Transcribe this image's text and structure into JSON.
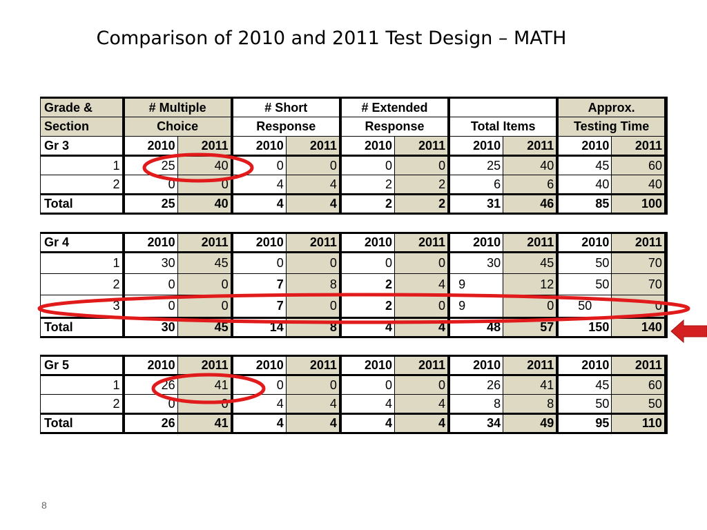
{
  "title": "Comparison of 2010 and 2011 Test Design – MATH",
  "slide_number": "8",
  "header": {
    "grade_section_line1": "Grade &",
    "grade_section_line2": "Section",
    "mc_line1": "# Multiple",
    "mc_line2": "Choice",
    "sr_line1": "# Short",
    "sr_line2": "Response",
    "er_line1": "# Extended",
    "er_line2": "Response",
    "total_items": "Total Items",
    "time_line1": "Approx.",
    "time_line2": "Testing Time"
  },
  "tables": [
    {
      "label": "Gr 3",
      "years": [
        "2010",
        "2011",
        "2010",
        "2011",
        "2010",
        "2011",
        "2010",
        "2011",
        "2010",
        "2011"
      ],
      "rows": [
        {
          "section": "1",
          "values": [
            "25",
            "40",
            "0",
            "0",
            "0",
            "0",
            "25",
            "40",
            "45",
            "60"
          ]
        },
        {
          "section": "2",
          "values": [
            "0",
            "0",
            "4",
            "4",
            "2",
            "2",
            "6",
            "6",
            "40",
            "40"
          ]
        }
      ],
      "total": {
        "label": "Total",
        "values": [
          "25",
          "40",
          "4",
          "4",
          "2",
          "2",
          "31",
          "46",
          "85",
          "100"
        ]
      }
    },
    {
      "label": "Gr 4",
      "years": [
        "2010",
        "2011",
        "2010",
        "2011",
        "2010",
        "2011",
        "2010",
        "2011",
        "2010",
        "2011"
      ],
      "rows": [
        {
          "section": "1",
          "values": [
            "30",
            "45",
            "0",
            "0",
            "0",
            "0",
            "30",
            "45",
            "50",
            "70"
          ]
        },
        {
          "section": "2",
          "values": [
            "0",
            "0",
            "7",
            "8",
            "2",
            "4",
            "9",
            "12",
            "50",
            "70"
          ]
        },
        {
          "section": "3",
          "values": [
            "0",
            "0",
            "7",
            "0",
            "2",
            "0",
            "9",
            "0",
            "50",
            "0"
          ]
        }
      ],
      "total": {
        "label": "Total",
        "values": [
          "30",
          "45",
          "14",
          "8",
          "4",
          "4",
          "48",
          "57",
          "150",
          "140"
        ]
      }
    },
    {
      "label": "Gr 5",
      "years": [
        "2010",
        "2011",
        "2010",
        "2011",
        "2010",
        "2011",
        "2010",
        "2011",
        "2010",
        "2011"
      ],
      "rows": [
        {
          "section": "1",
          "values": [
            "26",
            "41",
            "0",
            "0",
            "0",
            "0",
            "26",
            "41",
            "45",
            "60"
          ]
        },
        {
          "section": "2",
          "values": [
            "0",
            "0",
            "4",
            "4",
            "4",
            "4",
            "8",
            "8",
            "50",
            "50"
          ]
        }
      ],
      "total": {
        "label": "Total",
        "values": [
          "26",
          "41",
          "4",
          "4",
          "4",
          "4",
          "34",
          "49",
          "95",
          "110"
        ]
      }
    }
  ],
  "annotations": {
    "circle_color": "#e11b1b",
    "arrow_color": "#d42020",
    "shade_color": "#ddd9c3"
  }
}
